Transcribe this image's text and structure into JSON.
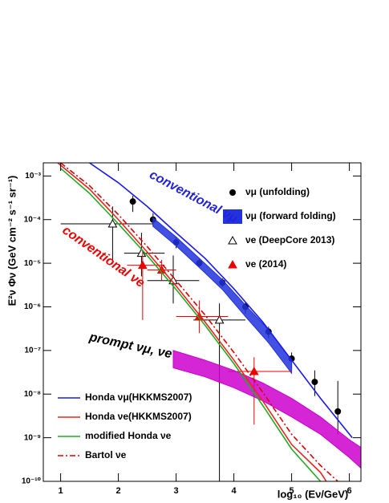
{
  "chart_data": {
    "type": "line",
    "log_y": true,
    "xlabel": "log₁₀ (Eν/GeV)",
    "ylabel": "E²ν Φν (GeV cm⁻² s⁻¹ sr⁻¹)",
    "xlim": [
      0.7,
      6.2
    ],
    "ylim": [
      1e-10,
      0.002
    ],
    "xticks": [
      1,
      2,
      3,
      4,
      5,
      6
    ],
    "yticks": [
      {
        "value": 1e-10,
        "label": "10⁻¹⁰"
      },
      {
        "value": 1e-09,
        "label": "10⁻⁹"
      },
      {
        "value": 1e-08,
        "label": "10⁻⁸"
      },
      {
        "value": 1e-07,
        "label": "10⁻⁷"
      },
      {
        "value": 1e-06,
        "label": "10⁻⁶"
      },
      {
        "value": 1e-05,
        "label": "10⁻⁵"
      },
      {
        "value": 0.0001,
        "label": "10⁻⁴"
      },
      {
        "value": 0.001,
        "label": "10⁻³"
      }
    ],
    "annotations": [
      {
        "text": "conventional νμ",
        "x": 2.55,
        "y": 0.0011,
        "angle": 28,
        "color": "#2222dd"
      },
      {
        "text": "conventional νe",
        "x": 1.05,
        "y": 6e-05,
        "angle": 35,
        "color": "#ee0000"
      },
      {
        "text": "prompt νμ, νe",
        "x": 1.5,
        "y": 2e-07,
        "angle": 12,
        "color": "#000000"
      }
    ],
    "series": [
      {
        "name": "νμ (unfolding)",
        "kind": "points",
        "marker": "circle",
        "color": "#000000",
        "legend": "upper right",
        "x": [
          2.25,
          2.6,
          3.0,
          3.4,
          3.8,
          4.2,
          4.6,
          5.0,
          5.4,
          5.8
        ],
        "values": [
          0.00026,
          0.0001,
          3e-05,
          1e-05,
          3.6e-06,
          1e-06,
          2.7e-07,
          6.5e-08,
          1.9e-08,
          4e-09
        ],
        "ylow": [
          0.00015,
          7e-05,
          2.2e-05,
          8e-06,
          2.8e-06,
          7e-07,
          1.9e-07,
          4e-08,
          9e-09,
          1.2e-09
        ],
        "yhigh": [
          0.00035,
          0.00014,
          4e-05,
          1.3e-05,
          4.5e-06,
          1.3e-06,
          3.5e-07,
          9e-08,
          3.5e-08,
          2e-08
        ]
      },
      {
        "name": "νμ (forward folding)",
        "kind": "band",
        "color": "#2233dd",
        "legend": "upper right",
        "x": [
          2.6,
          3.0,
          3.4,
          3.8,
          4.2,
          4.6,
          5.0
        ],
        "low": [
          7e-05,
          2.5e-05,
          8e-06,
          2.5e-06,
          6e-07,
          1.5e-07,
          3e-08
        ],
        "high": [
          0.00011,
          4e-05,
          1.3e-05,
          4.2e-06,
          1.1e-06,
          3e-07,
          6e-08
        ]
      },
      {
        "name": "νe (DeepCore 2013)",
        "kind": "points",
        "marker": "open-triangle",
        "color": "#000000",
        "legend": "upper right",
        "x": [
          1.9,
          2.4,
          2.95,
          3.75
        ],
        "values": [
          8e-05,
          1.7e-05,
          4e-06,
          5e-07
        ],
        "ylow": [
          1.2e-05,
          5e-06,
          1.2e-06,
          1e-10
        ],
        "yhigh": [
          0.0002,
          5e-05,
          1.5e-05,
          1.2e-06
        ],
        "xlow": [
          1.0,
          2.1,
          2.5,
          3.3
        ],
        "xhigh": [
          2.6,
          2.8,
          3.4,
          4.2
        ]
      },
      {
        "name": "νe (2014)",
        "kind": "points",
        "marker": "triangle",
        "color": "#ee0000",
        "legend": "upper right",
        "x": [
          2.42,
          2.75,
          3.4,
          4.35
        ],
        "values": [
          9e-06,
          7e-06,
          6e-07,
          3.3e-08
        ],
        "ylow": [
          5e-07,
          4e-06,
          2.5e-07,
          2e-09
        ],
        "yhigh": [
          2e-05,
          1.2e-05,
          1.4e-06,
          7e-08
        ],
        "xlow": [
          2.15,
          2.5,
          3.0,
          3.9
        ],
        "xhigh": [
          2.8,
          3.0,
          3.9,
          5.0
        ]
      },
      {
        "name": "prompt",
        "kind": "band",
        "color": "#cc00cc",
        "nolegend": true,
        "x": [
          2.95,
          3.5,
          4.0,
          4.5,
          5.0,
          5.5,
          6.0,
          6.2
        ],
        "low": [
          4e-08,
          2.5e-08,
          1.4e-08,
          7e-09,
          3e-09,
          1.2e-09,
          3.5e-10,
          2e-10
        ],
        "high": [
          1e-07,
          6e-08,
          3.5e-08,
          1.8e-08,
          8e-09,
          3e-09,
          9e-10,
          6e-10
        ]
      },
      {
        "name": "Honda νμ(HKKMS2007)",
        "kind": "line",
        "color": "#1a1aee",
        "legend": "lower left",
        "x": [
          1.5,
          2.0,
          2.5,
          3.0,
          3.5,
          4.0,
          4.5,
          5.0,
          5.5,
          6.05
        ],
        "values": [
          0.002,
          0.0007,
          0.0002,
          5e-05,
          1.3e-05,
          2.6e-06,
          4.5e-07,
          6e-08,
          8e-09,
          1e-09
        ]
      },
      {
        "name": "Honda νe(HKKMS2007)",
        "kind": "line",
        "color": "#ee2222",
        "legend": "lower left",
        "x": [
          0.95,
          1.5,
          2.0,
          2.5,
          3.0,
          3.5,
          4.0,
          4.5,
          5.0,
          5.5,
          5.6
        ],
        "values": [
          0.002,
          0.0005,
          0.0001,
          1.8e-05,
          3e-06,
          4.5e-07,
          6e-08,
          7e-09,
          7e-10,
          1.6e-10,
          1e-10
        ]
      },
      {
        "name": "modified Honda νe",
        "kind": "line",
        "color": "#22aa22",
        "legend": "lower left",
        "x": [
          1.0,
          1.5,
          2.0,
          2.5,
          3.0,
          3.5,
          4.0,
          4.5,
          5.0,
          5.5
        ],
        "values": [
          0.0015,
          0.0004,
          8e-05,
          1.5e-05,
          2.5e-06,
          3.8e-07,
          5e-08,
          5.5e-09,
          5.5e-10,
          1e-10
        ]
      },
      {
        "name": "Bartol νe",
        "kind": "line",
        "dash": "dash-dot",
        "color": "#dd0000",
        "legend": "lower left",
        "x": [
          1.0,
          1.5,
          2.0,
          2.5,
          3.0,
          3.5,
          4.0,
          4.5,
          5.0,
          5.5,
          5.8
        ],
        "values": [
          0.002,
          0.0006,
          0.00013,
          2.4e-05,
          4e-06,
          6.5e-07,
          9e-08,
          1.1e-08,
          1.2e-09,
          2.3e-10,
          1e-10
        ]
      }
    ]
  }
}
